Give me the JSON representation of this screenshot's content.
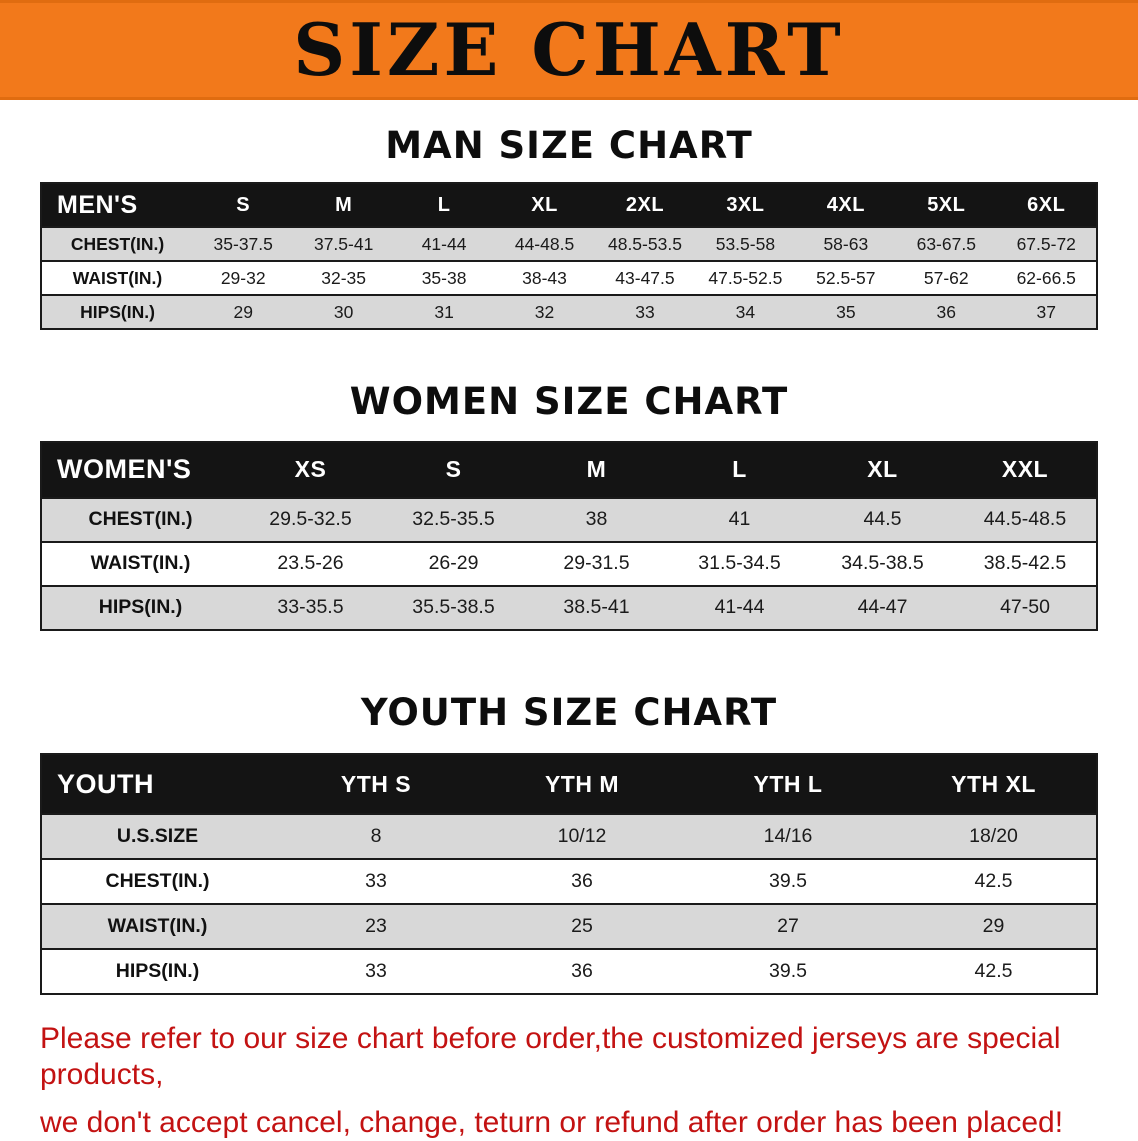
{
  "colors": {
    "banner_bg": "#f2791b",
    "table_header_bg": "#141414",
    "row_stripe": "#d8d8d8",
    "note_text": "#c31212"
  },
  "banner": {
    "title": "SIZE CHART"
  },
  "sections": [
    {
      "id": "men",
      "heading": "MAN SIZE CHART",
      "table": {
        "header": [
          "MEN'S",
          "S",
          "M",
          "L",
          "XL",
          "2XL",
          "3XL",
          "4XL",
          "5XL",
          "6XL"
        ],
        "rows": [
          [
            "CHEST(IN.)",
            "35-37.5",
            "37.5-41",
            "41-44",
            "44-48.5",
            "48.5-53.5",
            "53.5-58",
            "58-63",
            "63-67.5",
            "67.5-72"
          ],
          [
            "WAIST(IN.)",
            "29-32",
            "32-35",
            "35-38",
            "38-43",
            "43-47.5",
            "47.5-52.5",
            "52.5-57",
            "57-62",
            "62-66.5"
          ],
          [
            "HIPS(IN.)",
            "29",
            "30",
            "31",
            "32",
            "33",
            "34",
            "35",
            "36",
            "37"
          ]
        ]
      }
    },
    {
      "id": "women",
      "heading": "WOMEN SIZE CHART",
      "table": {
        "header": [
          "WOMEN'S",
          "XS",
          "S",
          "M",
          "L",
          "XL",
          "XXL"
        ],
        "rows": [
          [
            "CHEST(IN.)",
            "29.5-32.5",
            "32.5-35.5",
            "38",
            "41",
            "44.5",
            "44.5-48.5"
          ],
          [
            "WAIST(IN.)",
            "23.5-26",
            "26-29",
            "29-31.5",
            "31.5-34.5",
            "34.5-38.5",
            "38.5-42.5"
          ],
          [
            "HIPS(IN.)",
            "33-35.5",
            "35.5-38.5",
            "38.5-41",
            "41-44",
            "44-47",
            "47-50"
          ]
        ]
      }
    },
    {
      "id": "youth",
      "heading": "YOUTH SIZE CHART",
      "table": {
        "header": [
          "YOUTH",
          "YTH S",
          "YTH M",
          "YTH L",
          "YTH XL"
        ],
        "rows": [
          [
            "U.S.SIZE",
            "8",
            "10/12",
            "14/16",
            "18/20"
          ],
          [
            "CHEST(IN.)",
            "33",
            "36",
            "39.5",
            "42.5"
          ],
          [
            "WAIST(IN.)",
            "23",
            "25",
            "27",
            "29"
          ],
          [
            "HIPS(IN.)",
            "33",
            "36",
            "39.5",
            "42.5"
          ]
        ]
      }
    }
  ],
  "note": {
    "line1": "Please refer to our size chart before order,the customized jerseys are special products,",
    "line2": "we don't accept cancel, change, teturn or refund after order has been placed!"
  }
}
